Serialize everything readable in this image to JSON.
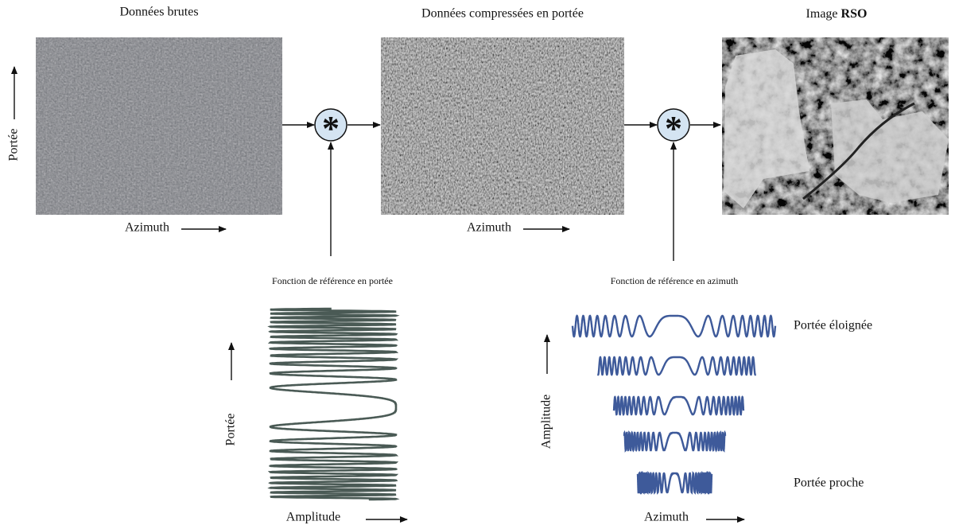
{
  "panels": [
    {
      "title": "Données brutes",
      "x_label": "Azimuth",
      "y_label": "Portée"
    },
    {
      "title": "Données compressées en portée",
      "x_label": "Azimuth"
    },
    {
      "title": {
        "prefix": "Image",
        "emphasis": "RSO"
      }
    }
  ],
  "operators": [
    "*",
    "*"
  ],
  "range_reference": {
    "title": "Fonction de référence en portée",
    "y_label": "Portée",
    "x_label": "Amplitude"
  },
  "azimuth_reference": {
    "title": "Fonction de référence en azimuth",
    "y_label": "Amplitude",
    "x_label": "Azimuth",
    "far_label": "Portée éloignée",
    "near_label": "Portée proche"
  }
}
